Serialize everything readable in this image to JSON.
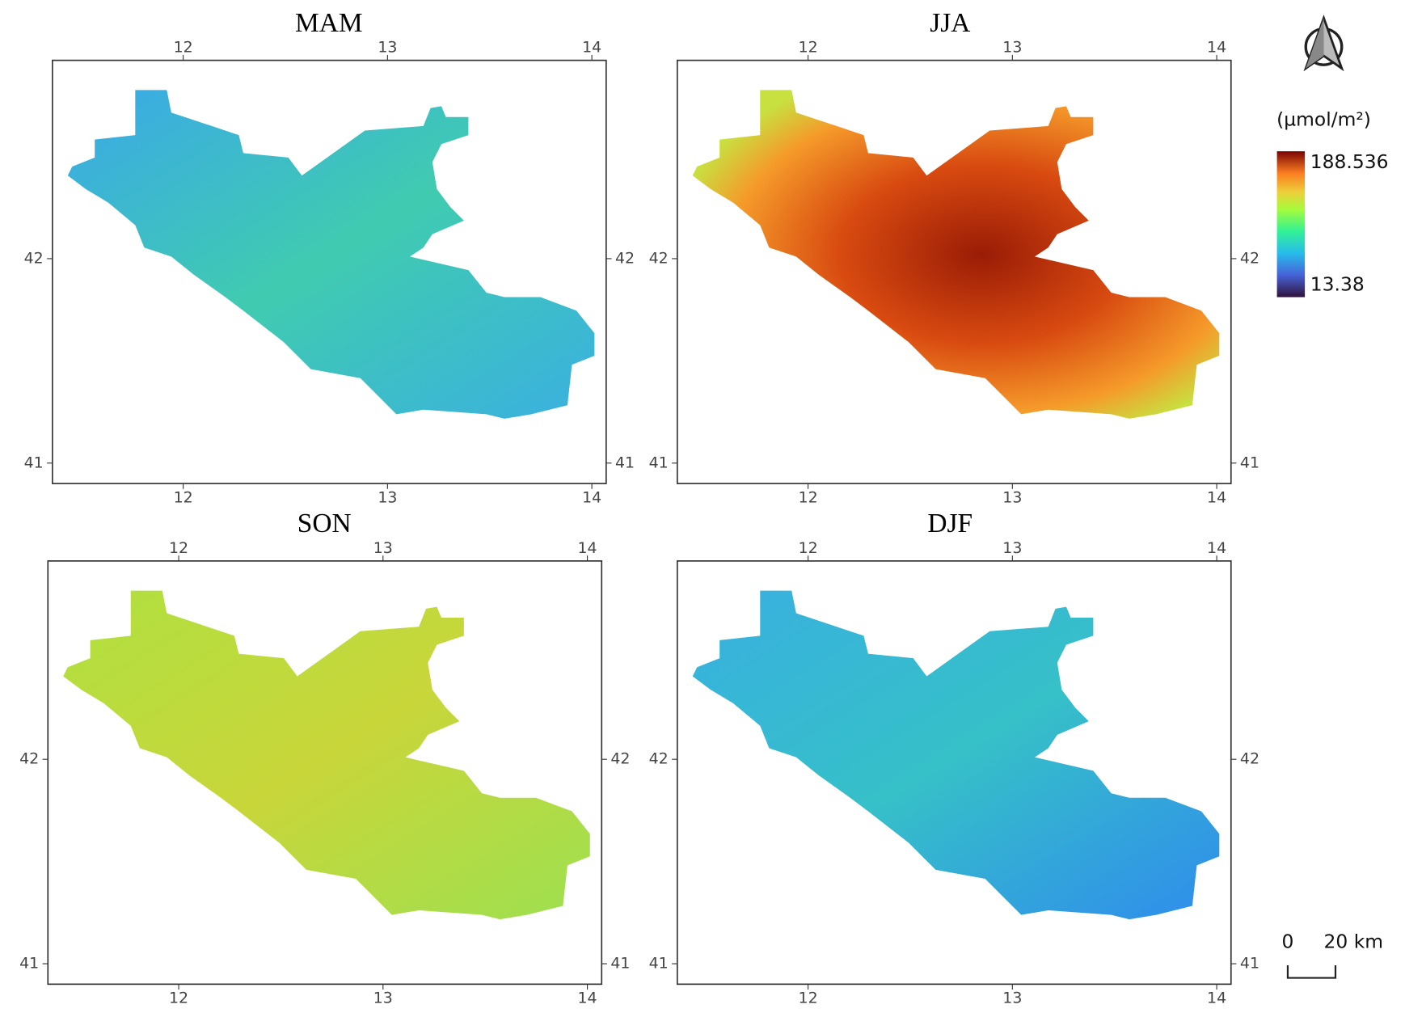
{
  "panels": [
    {
      "title": "MAM",
      "xticks": [
        12,
        13,
        14
      ],
      "yticks": [
        41,
        42
      ],
      "xlim": [
        11.36,
        14.07
      ],
      "ylim": [
        40.9,
        42.97
      ]
    },
    {
      "title": "JJA",
      "xticks": [
        12,
        13,
        14
      ],
      "yticks": [
        41,
        42
      ],
      "xlim": [
        11.36,
        14.07
      ],
      "ylim": [
        40.9,
        42.97
      ]
    },
    {
      "title": "SON",
      "xticks": [
        12,
        13,
        14
      ],
      "yticks": [
        41,
        42
      ],
      "xlim": [
        11.36,
        14.07
      ],
      "ylim": [
        40.9,
        42.97
      ]
    },
    {
      "title": "DJF",
      "xticks": [
        12,
        13,
        14
      ],
      "yticks": [
        41,
        42
      ],
      "xlim": [
        11.36,
        14.07
      ],
      "ylim": [
        40.9,
        42.97
      ]
    }
  ],
  "colorbar": {
    "unit": "(µmol/m²)",
    "max": 188.536,
    "min": 13.38
  },
  "scale_bar": {
    "labels": [
      "0",
      "20 km"
    ]
  }
}
